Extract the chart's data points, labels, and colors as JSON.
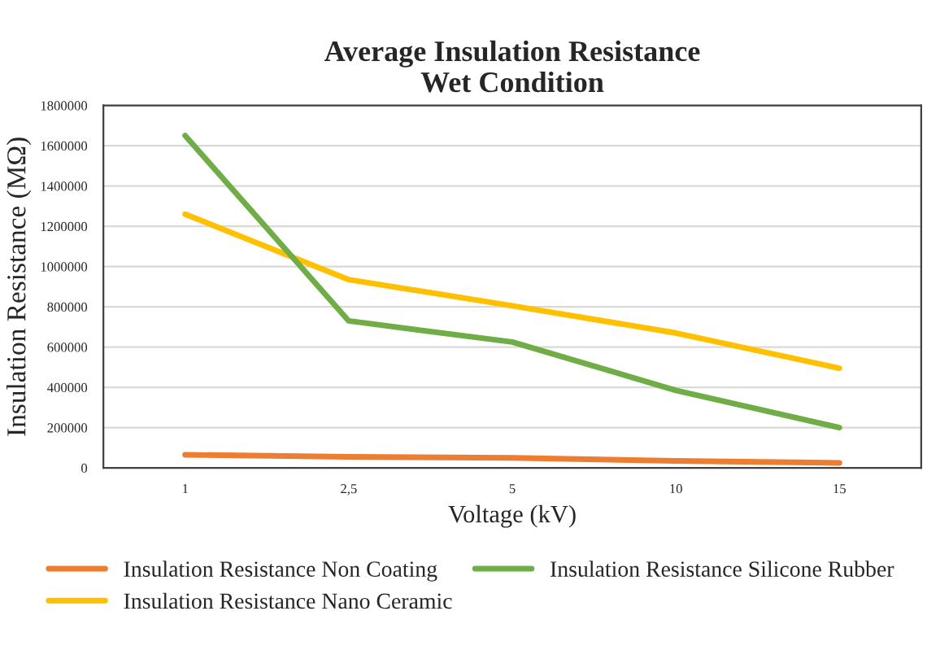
{
  "chart_data": {
    "type": "line",
    "title": "Average Insulation Resistance\nWet Condition",
    "xlabel": "Voltage (kV)",
    "ylabel": "Insulation Resistance (MΩ)",
    "categories": [
      "1",
      "2,5",
      "5",
      "10",
      "15"
    ],
    "series": [
      {
        "name": "Insulation Resistance Non Coating",
        "color": "#ed7d31",
        "values": [
          65000,
          55000,
          50000,
          35000,
          25000
        ]
      },
      {
        "name": "Insulation Resistance Nano Ceramic",
        "color": "#ffc000",
        "values": [
          1260000,
          935000,
          805000,
          670000,
          495000
        ]
      },
      {
        "name": "Insulation Resistance Silicone Rubber",
        "color": "#70ad47",
        "values": [
          1650000,
          730000,
          625000,
          385000,
          200000
        ]
      }
    ],
    "ylim": [
      0,
      1800000
    ],
    "yticks": [
      0,
      200000,
      400000,
      600000,
      800000,
      1000000,
      1200000,
      1400000,
      1600000,
      1800000
    ],
    "grid": "y",
    "legend": "bottom"
  }
}
